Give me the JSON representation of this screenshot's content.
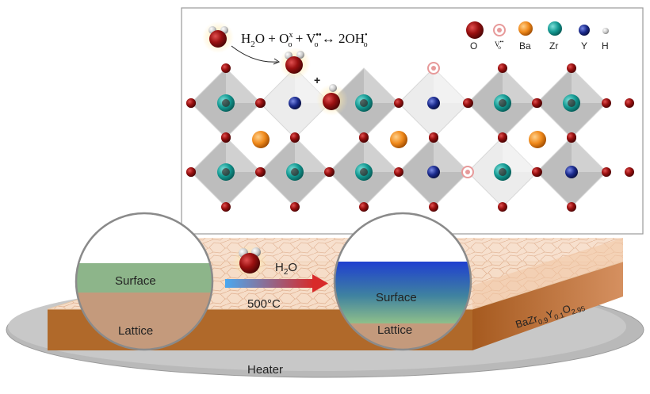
{
  "crystal_panel": {
    "equation": {
      "h2o": "H",
      "h2o_sub": "2",
      "h2o_tail": "O + O",
      "o_sup": "x",
      "o_sub": "o",
      "plus_v": " + V",
      "v_sup": "••",
      "v_sub": "o",
      "arrow": " ↔ ",
      "product": "2OH",
      "prod_sup": "•",
      "prod_sub": "o"
    },
    "plus_sign": "+",
    "legend": [
      {
        "label": "O",
        "color": "#8b0f0f"
      },
      {
        "label": "V",
        "sup": "••",
        "sub": "o",
        "color": "#e9a0a0"
      },
      {
        "label": "Ba",
        "color": "#f08a1c"
      },
      {
        "label": "Zr",
        "color": "#149a93"
      },
      {
        "label": "Y",
        "color": "#1a2a8c"
      },
      {
        "label": "H",
        "color": "#c8c8c8"
      }
    ]
  },
  "bottom_panel": {
    "left_magnifier": {
      "surface": "Surface",
      "lattice": "Lattice"
    },
    "right_magnifier": {
      "surface": "Surface",
      "lattice": "Lattice"
    },
    "water_label": "H",
    "water_sub": "2",
    "water_tail": "O",
    "temperature": "500°C",
    "heater_label": "Heater",
    "formula": {
      "ba": "BaZr",
      "zr_sub": "0.9",
      "y": "Y",
      "y_sub": "0.1",
      "o": "O",
      "o_sub": "2.95"
    }
  },
  "colors": {
    "oxygen": "#8b0f0f",
    "barium": "#f08a1c",
    "zirconium": "#149a93",
    "yttrium": "#1a2a8c",
    "octahedron": "#b9b9b9",
    "surface_green": "#8db58a",
    "lattice_tan": "#c49a7c",
    "heater_gray": "#b5b5b5"
  }
}
